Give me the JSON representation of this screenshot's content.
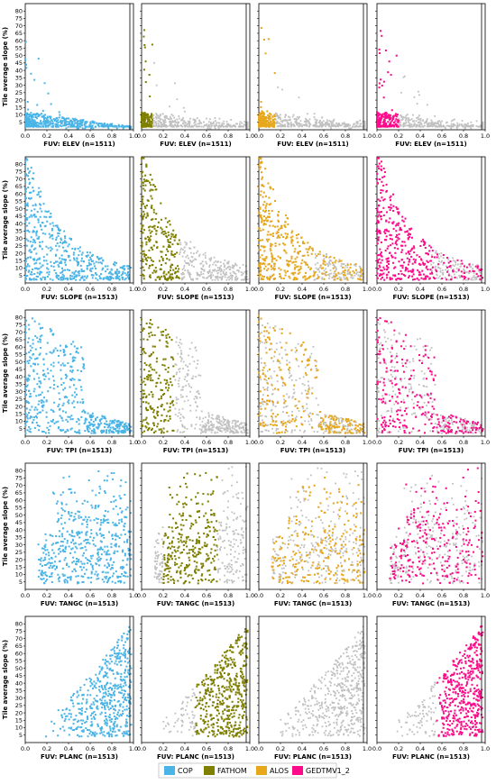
{
  "chart_data": {
    "type": "scatter",
    "ylabel": "Tile average slope (%)",
    "x_ticks": [
      "0.0",
      "0.2",
      "0.4",
      "0.6",
      "0.8",
      "1.0"
    ],
    "xlim": [
      0,
      1
    ],
    "ylim": [
      0,
      85
    ],
    "y_ticks": [
      5,
      10,
      15,
      20,
      25,
      30,
      35,
      40,
      45,
      50,
      55,
      60,
      65,
      70,
      75,
      80
    ],
    "background_color": "#c0c0c0",
    "grid": false,
    "legend_placement": "bottom-center",
    "series": [
      {
        "name": "COP",
        "color": "#4ab4e6"
      },
      {
        "name": "FATHOM",
        "color": "#808000"
      },
      {
        "name": "ALOS",
        "color": "#e8a81c"
      },
      {
        "name": "GEDTMV1_2",
        "color": "#ff0a8a"
      }
    ],
    "rows": [
      {
        "xlabel": "FUV: ELEV  (n=1511)",
        "pattern": "elev"
      },
      {
        "xlabel": "FUV: SLOPE  (n=1513)",
        "pattern": "slope"
      },
      {
        "xlabel": "FUV: TPI  (n=1513)",
        "pattern": "tpi"
      },
      {
        "xlabel": "FUV: TANGC  (n=1513)",
        "pattern": "tangc"
      },
      {
        "xlabel": "FUV: PLANC  (n=1513)",
        "pattern": "planc"
      }
    ]
  }
}
